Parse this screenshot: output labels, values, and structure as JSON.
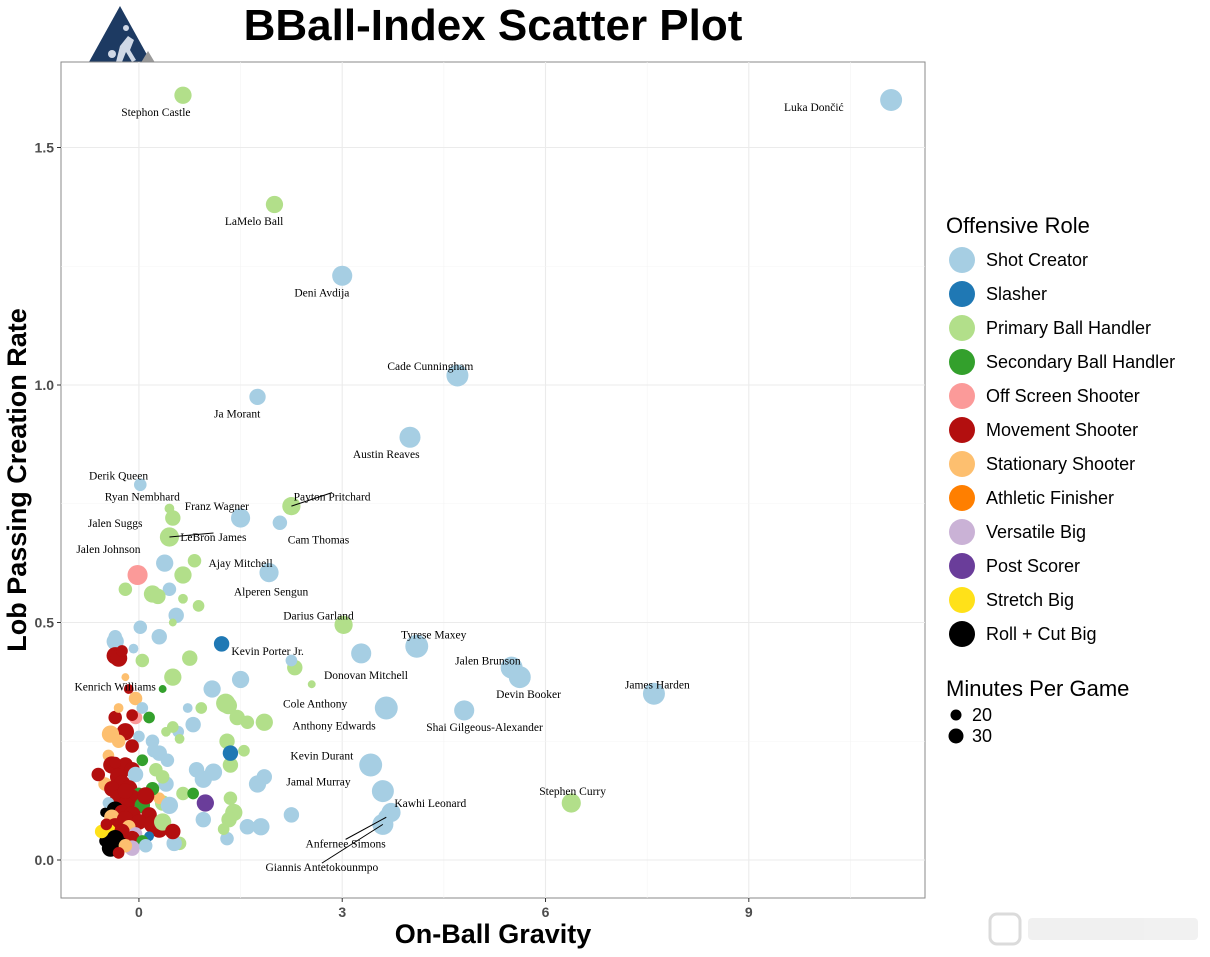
{
  "chart_data": {
    "type": "scatter",
    "title": "BBall-Index Scatter Plot",
    "xlabel": "On-Ball Gravity",
    "ylabel": "Lob Passing Creation Rate",
    "xlim": [
      -1.15,
      11.6
    ],
    "ylim": [
      -0.08,
      1.68
    ],
    "xticks": [
      0,
      3,
      6,
      9
    ],
    "yticks": [
      0.0,
      0.5,
      1.0,
      1.5
    ],
    "xtick_labels": [
      "0",
      "3",
      "6",
      "9"
    ],
    "ytick_labels": [
      "0.0",
      "0.5",
      "1.0",
      "1.5"
    ],
    "grid": true,
    "legend": {
      "placement": "right",
      "role_title": "Offensive Role",
      "size_title": "Minutes Per Game",
      "roles": [
        {
          "name": "Shot Creator",
          "color": "#a6cee3"
        },
        {
          "name": "Slasher",
          "color": "#1f78b4"
        },
        {
          "name": "Primary Ball Handler",
          "color": "#b2df8a"
        },
        {
          "name": "Secondary Ball Handler",
          "color": "#33a02c"
        },
        {
          "name": "Off Screen Shooter",
          "color": "#fb9a99"
        },
        {
          "name": "Movement Shooter",
          "color": "#b30f0f"
        },
        {
          "name": "Stationary Shooter",
          "color": "#fdbf6f"
        },
        {
          "name": "Athletic Finisher",
          "color": "#ff7f00"
        },
        {
          "name": "Versatile Big",
          "color": "#cab2d6"
        },
        {
          "name": "Post Scorer",
          "color": "#6a3d9a"
        },
        {
          "name": "Stretch Big",
          "color": "#ffe119"
        },
        {
          "name": "Roll + Cut Big",
          "color": "#000000"
        }
      ],
      "sizes": [
        {
          "label": "20",
          "value": 20
        },
        {
          "label": "30",
          "value": 30
        }
      ]
    },
    "labeled_points": [
      {
        "name": "Luka Dončić",
        "x": 11.1,
        "y": 1.6,
        "role": 0,
        "mpg": 35,
        "lx": 10.4,
        "ly": 1.585,
        "anchor": "end"
      },
      {
        "name": "Stephon Castle",
        "x": 0.65,
        "y": 1.61,
        "role": 2,
        "mpg": 30,
        "lx": 0.25,
        "ly": 1.575,
        "anchor": "middle"
      },
      {
        "name": "LaMelo Ball",
        "x": 2.0,
        "y": 1.38,
        "role": 2,
        "mpg": 30,
        "lx": 1.7,
        "ly": 1.345,
        "anchor": "middle"
      },
      {
        "name": "Deni Avdija",
        "x": 3.0,
        "y": 1.23,
        "role": 0,
        "mpg": 33,
        "lx": 2.7,
        "ly": 1.195,
        "anchor": "middle"
      },
      {
        "name": "Cade Cunningham",
        "x": 4.7,
        "y": 1.02,
        "role": 0,
        "mpg": 35,
        "lx": 4.3,
        "ly": 1.04,
        "anchor": "middle"
      },
      {
        "name": "Ja Morant",
        "x": 1.75,
        "y": 0.975,
        "role": 0,
        "mpg": 29,
        "lx": 1.45,
        "ly": 0.94,
        "anchor": "middle"
      },
      {
        "name": "Austin Reaves",
        "x": 4.0,
        "y": 0.89,
        "role": 0,
        "mpg": 34,
        "lx": 3.65,
        "ly": 0.855,
        "anchor": "middle"
      },
      {
        "name": "Derik Queen",
        "x": 0.02,
        "y": 0.79,
        "role": 0,
        "mpg": 25,
        "lx": -0.3,
        "ly": 0.81,
        "anchor": "middle"
      },
      {
        "name": "Payton Pritchard",
        "x": 2.25,
        "y": 0.745,
        "role": 2,
        "mpg": 31,
        "lx": 2.85,
        "ly": 0.765,
        "anchor": "middle",
        "line": true
      },
      {
        "name": "Ryan Nembhard",
        "x": 0.45,
        "y": 0.74,
        "role": 2,
        "mpg": 22,
        "lx": 0.05,
        "ly": 0.765,
        "anchor": "middle"
      },
      {
        "name": "Franz Wagner",
        "x": 1.5,
        "y": 0.72,
        "role": 0,
        "mpg": 32,
        "lx": 1.15,
        "ly": 0.745,
        "anchor": "middle"
      },
      {
        "name": "Cam Thomas",
        "x": 2.08,
        "y": 0.71,
        "role": 0,
        "mpg": 27,
        "lx": 2.65,
        "ly": 0.675,
        "anchor": "middle"
      },
      {
        "name": "Jalen Suggs",
        "x": 0.5,
        "y": 0.72,
        "role": 2,
        "mpg": 28,
        "lx": -0.35,
        "ly": 0.71,
        "anchor": "middle"
      },
      {
        "name": "LeBron James",
        "x": 0.45,
        "y": 0.68,
        "role": 2,
        "mpg": 32,
        "lx": 1.1,
        "ly": 0.68,
        "anchor": "middle",
        "line": true
      },
      {
        "name": "Jalen Johnson",
        "x": -0.02,
        "y": 0.6,
        "role": 4,
        "mpg": 33,
        "lx": -0.45,
        "ly": 0.655,
        "anchor": "middle"
      },
      {
        "name": "Ajay Mitchell",
        "x": 0.82,
        "y": 0.63,
        "role": 2,
        "mpg": 26,
        "lx": 1.5,
        "ly": 0.625,
        "anchor": "middle"
      },
      {
        "name": "Alperen Sengun",
        "x": 1.92,
        "y": 0.605,
        "role": 0,
        "mpg": 32,
        "lx": 1.95,
        "ly": 0.565,
        "anchor": "middle"
      },
      {
        "name": "Darius Garland",
        "x": 3.02,
        "y": 0.495,
        "role": 2,
        "mpg": 31,
        "lx": 2.65,
        "ly": 0.515,
        "anchor": "middle"
      },
      {
        "name": "Tyrese Maxey",
        "x": 4.1,
        "y": 0.45,
        "role": 0,
        "mpg": 36,
        "lx": 4.35,
        "ly": 0.475,
        "anchor": "middle"
      },
      {
        "name": "Kevin Porter Jr.",
        "x": 1.22,
        "y": 0.455,
        "role": 1,
        "mpg": 28,
        "lx": 1.9,
        "ly": 0.44,
        "anchor": "middle"
      },
      {
        "name": "Jalen Brunson",
        "x": 5.5,
        "y": 0.405,
        "role": 0,
        "mpg": 35,
        "lx": 5.15,
        "ly": 0.42,
        "anchor": "middle"
      },
      {
        "name": "Donovan Mitchell",
        "x": 3.28,
        "y": 0.435,
        "role": 0,
        "mpg": 33,
        "lx": 3.35,
        "ly": 0.39,
        "anchor": "middle"
      },
      {
        "name": "James Harden",
        "x": 7.6,
        "y": 0.35,
        "role": 0,
        "mpg": 35,
        "lx": 7.65,
        "ly": 0.37,
        "anchor": "middle"
      },
      {
        "name": "Devin Booker",
        "x": 5.62,
        "y": 0.385,
        "role": 0,
        "mpg": 35,
        "lx": 5.75,
        "ly": 0.35,
        "anchor": "middle"
      },
      {
        "name": "Kenrich Williams",
        "x": 0.35,
        "y": 0.36,
        "role": 3,
        "mpg": 20,
        "lx": -0.35,
        "ly": 0.365,
        "anchor": "middle"
      },
      {
        "name": "Cole Anthony",
        "x": 2.25,
        "y": 0.42,
        "role": 0,
        "mpg": 24,
        "lx": 2.6,
        "ly": 0.33,
        "anchor": "middle"
      },
      {
        "name": "Shai Gilgeous-Alexander",
        "x": 4.8,
        "y": 0.315,
        "role": 0,
        "mpg": 33,
        "lx": 5.1,
        "ly": 0.28,
        "anchor": "middle"
      },
      {
        "name": "Anthony Edwards",
        "x": 3.65,
        "y": 0.32,
        "role": 0,
        "mpg": 36,
        "lx": 2.88,
        "ly": 0.283,
        "anchor": "middle"
      },
      {
        "name": "Kevin Durant",
        "x": 3.42,
        "y": 0.2,
        "role": 0,
        "mpg": 36,
        "lx": 2.7,
        "ly": 0.22,
        "anchor": "middle"
      },
      {
        "name": "Jamal Murray",
        "x": 3.6,
        "y": 0.145,
        "role": 0,
        "mpg": 35,
        "lx": 2.65,
        "ly": 0.165,
        "anchor": "middle"
      },
      {
        "name": "Stephen Curry",
        "x": 6.38,
        "y": 0.12,
        "role": 2,
        "mpg": 32,
        "lx": 6.4,
        "ly": 0.145,
        "anchor": "middle"
      },
      {
        "name": "Kawhi Leonard",
        "x": 3.72,
        "y": 0.1,
        "role": 0,
        "mpg": 32,
        "lx": 4.3,
        "ly": 0.12,
        "anchor": "middle"
      },
      {
        "name": "Anfernee Simons",
        "x": 3.65,
        "y": 0.09,
        "role": 0,
        "mpg": 29,
        "lx": 3.05,
        "ly": 0.035,
        "anchor": "middle",
        "line": true
      },
      {
        "name": "Giannis Antetokounmpo",
        "x": 3.6,
        "y": 0.075,
        "role": 0,
        "mpg": 34,
        "lx": 2.7,
        "ly": -0.015,
        "anchor": "middle",
        "line": true
      }
    ],
    "other_points": [
      [
        -0.35,
        0.46,
        0,
        30
      ],
      [
        -0.35,
        0.47,
        0,
        26
      ],
      [
        0.02,
        0.49,
        0,
        26
      ],
      [
        -0.08,
        0.445,
        0,
        22
      ],
      [
        0.3,
        0.47,
        0,
        28
      ],
      [
        0.55,
        0.515,
        0,
        28
      ],
      [
        0.5,
        0.5,
        2,
        20
      ],
      [
        0.45,
        0.57,
        0,
        26
      ],
      [
        0.65,
        0.6,
        2,
        30
      ],
      [
        0.2,
        0.56,
        2,
        30
      ],
      [
        0.28,
        0.555,
        2,
        28
      ],
      [
        0.65,
        0.55,
        2,
        22
      ],
      [
        0.88,
        0.535,
        2,
        24
      ],
      [
        -0.2,
        0.57,
        2,
        26
      ],
      [
        0.38,
        0.625,
        0,
        30
      ],
      [
        0.05,
        0.42,
        2,
        26
      ],
      [
        0.75,
        0.425,
        2,
        28
      ],
      [
        0.5,
        0.385,
        2,
        30
      ],
      [
        1.5,
        0.38,
        0,
        30
      ],
      [
        1.08,
        0.36,
        0,
        30
      ],
      [
        0.72,
        0.32,
        0,
        22
      ],
      [
        0.92,
        0.32,
        2,
        24
      ],
      [
        1.28,
        0.33,
        2,
        32
      ],
      [
        1.32,
        0.325,
        2,
        30
      ],
      [
        1.45,
        0.3,
        2,
        28
      ],
      [
        1.85,
        0.29,
        2,
        30
      ],
      [
        1.6,
        0.29,
        2,
        26
      ],
      [
        0.8,
        0.285,
        0,
        28
      ],
      [
        0.58,
        0.27,
        0,
        24
      ],
      [
        0.6,
        0.255,
        2,
        22
      ],
      [
        0.4,
        0.27,
        2,
        22
      ],
      [
        0.2,
        0.25,
        0,
        26
      ],
      [
        0.5,
        0.28,
        2,
        24
      ],
      [
        1.3,
        0.25,
        2,
        28
      ],
      [
        1.55,
        0.23,
        2,
        24
      ],
      [
        1.35,
        0.2,
        2,
        28
      ],
      [
        1.35,
        0.225,
        1,
        28
      ],
      [
        0.85,
        0.19,
        0,
        28
      ],
      [
        0.95,
        0.17,
        0,
        30
      ],
      [
        1.1,
        0.185,
        0,
        30
      ],
      [
        1.75,
        0.16,
        0,
        30
      ],
      [
        1.85,
        0.175,
        0,
        28
      ],
      [
        0.65,
        0.14,
        2,
        26
      ],
      [
        0.8,
        0.14,
        3,
        24
      ],
      [
        1.35,
        0.13,
        2,
        26
      ],
      [
        0.98,
        0.12,
        9,
        30
      ],
      [
        1.4,
        0.1,
        2,
        30
      ],
      [
        1.33,
        0.085,
        2,
        28
      ],
      [
        2.25,
        0.095,
        0,
        28
      ],
      [
        0.95,
        0.085,
        0,
        28
      ],
      [
        1.6,
        0.07,
        0,
        28
      ],
      [
        1.8,
        0.07,
        0,
        30
      ],
      [
        1.3,
        0.045,
        0,
        26
      ],
      [
        0.6,
        0.035,
        2,
        26
      ],
      [
        0.52,
        0.035,
        0,
        28
      ],
      [
        2.55,
        0.37,
        2,
        20
      ],
      [
        2.3,
        0.405,
        2,
        28
      ],
      [
        1.25,
        0.065,
        2,
        24
      ],
      [
        0.42,
        0.21,
        0,
        26
      ],
      [
        0.4,
        0.16,
        0,
        28
      ],
      [
        0.35,
        0.12,
        2,
        28
      ],
      [
        0.15,
        0.3,
        3,
        24
      ],
      [
        0.22,
        0.23,
        0,
        26
      ],
      [
        0.25,
        0.19,
        2,
        26
      ],
      [
        -0.35,
        0.43,
        5,
        30
      ],
      [
        -0.3,
        0.425,
        5,
        30
      ],
      [
        -0.25,
        0.44,
        5,
        24
      ],
      [
        -0.2,
        0.385,
        6,
        20
      ],
      [
        -0.05,
        0.34,
        6,
        26
      ],
      [
        -0.05,
        0.3,
        4,
        26
      ],
      [
        -0.1,
        0.305,
        5,
        24
      ],
      [
        0.0,
        0.26,
        0,
        24
      ],
      [
        -0.35,
        0.3,
        5,
        26
      ],
      [
        -0.2,
        0.27,
        5,
        30
      ],
      [
        -0.42,
        0.265,
        6,
        30
      ],
      [
        -0.3,
        0.25,
        6,
        26
      ],
      [
        -0.1,
        0.24,
        5,
        26
      ],
      [
        -0.45,
        0.22,
        6,
        24
      ],
      [
        0.05,
        0.21,
        3,
        24
      ],
      [
        -0.2,
        0.2,
        5,
        28
      ],
      [
        -0.4,
        0.2,
        5,
        30
      ],
      [
        -0.1,
        0.19,
        5,
        28
      ],
      [
        -0.3,
        0.175,
        5,
        30
      ],
      [
        -0.05,
        0.18,
        0,
        28
      ],
      [
        -0.5,
        0.16,
        6,
        26
      ],
      [
        -0.25,
        0.16,
        5,
        30
      ],
      [
        -0.15,
        0.15,
        5,
        30
      ],
      [
        -0.4,
        0.15,
        5,
        28
      ],
      [
        0.0,
        0.14,
        3,
        24
      ],
      [
        -0.3,
        0.13,
        5,
        30
      ],
      [
        -0.1,
        0.13,
        5,
        30
      ],
      [
        -0.45,
        0.12,
        0,
        24
      ],
      [
        -0.2,
        0.115,
        5,
        30
      ],
      [
        0.05,
        0.115,
        3,
        28
      ],
      [
        -0.35,
        0.105,
        11,
        30
      ],
      [
        -0.5,
        0.1,
        11,
        22
      ],
      [
        -0.25,
        0.1,
        5,
        28
      ],
      [
        -0.1,
        0.095,
        5,
        30
      ],
      [
        0.15,
        0.095,
        5,
        28
      ],
      [
        -0.4,
        0.09,
        6,
        28
      ],
      [
        -0.2,
        0.085,
        5,
        30
      ],
      [
        0.0,
        0.08,
        5,
        28
      ],
      [
        0.2,
        0.075,
        5,
        30
      ],
      [
        -0.35,
        0.07,
        5,
        30
      ],
      [
        -0.15,
        0.07,
        6,
        26
      ],
      [
        0.3,
        0.065,
        5,
        30
      ],
      [
        -0.45,
        0.06,
        10,
        28
      ],
      [
        -0.25,
        0.06,
        5,
        28
      ],
      [
        -0.05,
        0.055,
        8,
        26
      ],
      [
        0.15,
        0.05,
        1,
        22
      ],
      [
        -0.35,
        0.045,
        11,
        30
      ],
      [
        -0.1,
        0.045,
        5,
        28
      ],
      [
        0.05,
        0.04,
        3,
        24
      ],
      [
        -0.5,
        0.04,
        11,
        24
      ],
      [
        -0.25,
        0.035,
        11,
        24
      ],
      [
        -0.42,
        0.025,
        11,
        30
      ],
      [
        -0.1,
        0.025,
        8,
        28
      ],
      [
        -0.2,
        0.03,
        6,
        26
      ],
      [
        -0.3,
        0.015,
        5,
        24
      ],
      [
        0.1,
        0.03,
        0,
        26
      ],
      [
        -0.55,
        0.06,
        10,
        26
      ],
      [
        -0.48,
        0.075,
        5,
        24
      ],
      [
        -0.3,
        0.32,
        6,
        22
      ],
      [
        0.3,
        0.13,
        6,
        24
      ],
      [
        -0.6,
        0.18,
        5,
        26
      ],
      [
        0.45,
        0.115,
        0,
        30
      ],
      [
        0.2,
        0.15,
        3,
        26
      ],
      [
        0.3,
        0.225,
        0,
        28
      ],
      [
        -0.15,
        0.36,
        5,
        22
      ],
      [
        0.05,
        0.32,
        0,
        24
      ],
      [
        0.1,
        0.135,
        5,
        30
      ],
      [
        -0.2,
        0.145,
        5,
        28
      ],
      [
        0.35,
        0.08,
        2,
        30
      ],
      [
        0.35,
        0.175,
        2,
        26
      ],
      [
        0.5,
        0.06,
        5,
        28
      ],
      [
        -0.35,
        0.205,
        5,
        24
      ]
    ]
  },
  "logo": {
    "name": "BBall-Index logo"
  }
}
